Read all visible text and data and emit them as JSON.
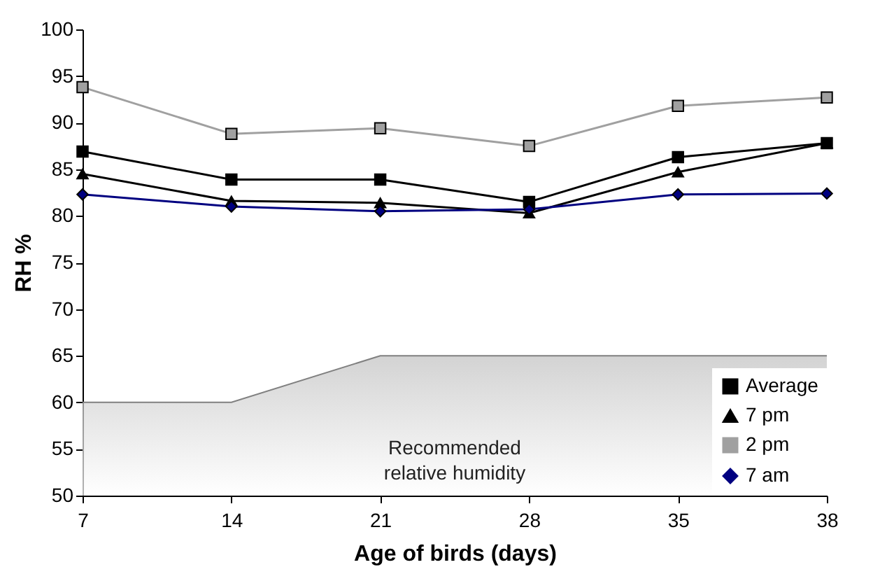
{
  "chart_data": {
    "type": "line",
    "xlabel": "Age of birds (days)",
    "ylabel": "RH %",
    "categories": [
      "7",
      "14",
      "21",
      "28",
      "35",
      "38"
    ],
    "ylim": [
      50,
      100
    ],
    "yticks": [
      50,
      55,
      60,
      65,
      70,
      75,
      80,
      85,
      90,
      95,
      100
    ],
    "grid": false,
    "legend": "bottom right",
    "series": [
      {
        "name": "Recommended relative humidity",
        "type": "area",
        "color": "#c0c0c0",
        "values": [
          60,
          60,
          65,
          65,
          65,
          65
        ]
      },
      {
        "name": "Average",
        "color": "#000000",
        "marker": "square",
        "values": [
          86.9,
          83.9,
          83.9,
          81.5,
          86.3,
          87.8
        ]
      },
      {
        "name": "7 pm",
        "color": "#000000",
        "marker": "triangle",
        "values": [
          84.5,
          81.6,
          81.4,
          80.3,
          84.7,
          87.8
        ]
      },
      {
        "name": "2 pm",
        "color": "#a0a0a0",
        "marker": "square",
        "values": [
          93.8,
          88.8,
          89.4,
          87.5,
          91.8,
          92.7
        ]
      },
      {
        "name": "7 am",
        "color": "#000080",
        "marker": "diamond",
        "values": [
          82.3,
          81.0,
          80.5,
          80.7,
          82.3,
          82.4
        ]
      }
    ]
  }
}
